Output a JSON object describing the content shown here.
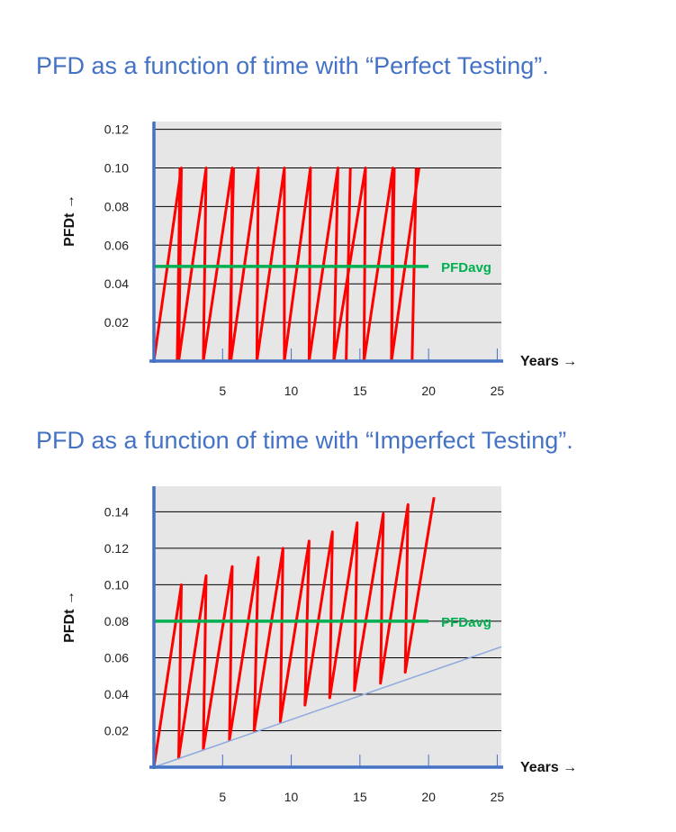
{
  "titles": {
    "top": "PFD as a function of time with “Perfect Testing”.",
    "bottom": "PFD as a function of time with “Imperfect Testing”."
  },
  "colors": {
    "title": "#4472c4",
    "axis": "#4472c4",
    "plot_bg": "#e6e6e6",
    "sawtooth": "#ff0000",
    "pfdavg": "#00b050",
    "trend": "#8faadc",
    "gridline": "#000000"
  },
  "chart_data": [
    {
      "type": "line",
      "xlabel": "Years →",
      "ylabel": "PFDt →",
      "xlim": [
        0,
        25.3
      ],
      "ylim": [
        0,
        0.124
      ],
      "x_ticks": [
        5,
        10,
        15,
        20,
        25
      ],
      "y_ticks": [
        0.02,
        0.04,
        0.06,
        0.08,
        0.1,
        0.12
      ],
      "y_tick_labels": [
        "0.02",
        "0.04",
        "0.06",
        "0.08",
        "0.10",
        "0.12"
      ],
      "x_tick_labels": [
        "5",
        "10",
        "15",
        "20",
        "25"
      ],
      "grid": "horizontal",
      "series": [
        {
          "role": "sawtooth",
          "x": [
            0,
            2,
            1.8,
            3.8,
            3.6,
            5.7,
            5.6,
            7.6,
            7.5,
            9.5,
            9.5,
            11.4,
            11.3,
            13.4,
            13.1,
            15.4,
            15.3,
            17.4,
            17.3,
            19.3
          ],
          "y": [
            0,
            0.1,
            0,
            0.1,
            0,
            0.1,
            0,
            0.1,
            0,
            0.1,
            0,
            0.1,
            0,
            0.1,
            0,
            0.1,
            0,
            0.1,
            0,
            0.1
          ],
          "segments": [
            {
              "x": [
                1.7,
                1.9
              ],
              "y": [
                0,
                0.1
              ]
            },
            {
              "x": [
                5.5,
                5.8
              ],
              "y": [
                0,
                0.1
              ]
            },
            {
              "x": [
                14.0,
                14.3
              ],
              "y": [
                0,
                0.1
              ]
            },
            {
              "x": [
                17.3,
                17.5
              ],
              "y": [
                0,
                0.1
              ]
            },
            {
              "x": [
                18.8,
                19.1
              ],
              "y": [
                0,
                0.1
              ]
            }
          ]
        },
        {
          "name": "PFDavg",
          "role": "average",
          "x": [
            0,
            20
          ],
          "y": [
            0.049,
            0.049
          ]
        }
      ]
    },
    {
      "type": "line",
      "xlabel": "Years →",
      "ylabel": "PFDt →",
      "xlim": [
        0,
        25.3
      ],
      "ylim": [
        0,
        0.154
      ],
      "x_ticks": [
        5,
        10,
        15,
        20,
        25
      ],
      "y_ticks": [
        0.02,
        0.04,
        0.06,
        0.08,
        0.1,
        0.12,
        0.14
      ],
      "y_tick_labels": [
        "0.02",
        "0.04",
        "0.06",
        "0.08",
        "0.10",
        "0.12",
        "0.14"
      ],
      "x_tick_labels": [
        "5",
        "10",
        "15",
        "20",
        "25"
      ],
      "grid": "horizontal",
      "series": [
        {
          "role": "sawtooth",
          "x": [
            0,
            2,
            1.8,
            3.8,
            3.6,
            5.7,
            5.5,
            7.6,
            7.3,
            9.4,
            9.2,
            11.3,
            11.0,
            13.0,
            12.8,
            14.8,
            14.6,
            16.7,
            16.5,
            18.5,
            18.3,
            20.4
          ],
          "y": [
            0,
            0.1,
            0.005,
            0.105,
            0.01,
            0.11,
            0.015,
            0.115,
            0.02,
            0.12,
            0.025,
            0.124,
            0.034,
            0.129,
            0.038,
            0.134,
            0.042,
            0.139,
            0.046,
            0.144,
            0.052,
            0.148
          ]
        },
        {
          "name": "PFDavg",
          "role": "average",
          "x": [
            0,
            20
          ],
          "y": [
            0.08,
            0.08
          ]
        },
        {
          "role": "trend",
          "x": [
            0,
            25.3
          ],
          "y": [
            0,
            0.066
          ]
        }
      ]
    }
  ]
}
